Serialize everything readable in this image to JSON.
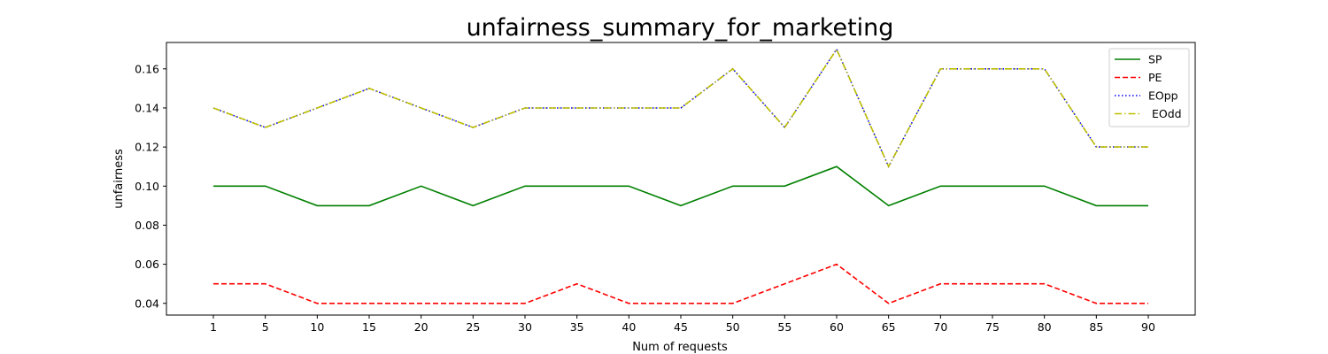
{
  "chart_data": {
    "type": "line",
    "title": "unfairness_summary_for_marketing",
    "xlabel": "Num of requests",
    "ylabel": "unfairness",
    "categories": [
      "1",
      "5",
      "10",
      "15",
      "20",
      "25",
      "30",
      "35",
      "40",
      "45",
      "50",
      "55",
      "60",
      "65",
      "70",
      "75",
      "80",
      "85",
      "90"
    ],
    "yticks": [
      "0.04",
      "0.06",
      "0.08",
      "0.10",
      "0.12",
      "0.14",
      "0.16"
    ],
    "ylim": [
      0.034,
      0.1735
    ],
    "grid": false,
    "legend_position": "top-right",
    "series": [
      {
        "name": "SP",
        "color": "#008000",
        "style": "solid",
        "values": [
          0.1,
          0.1,
          0.09,
          0.09,
          0.1,
          0.09,
          0.1,
          0.1,
          0.1,
          0.09,
          0.1,
          0.1,
          0.11,
          0.09,
          0.1,
          0.1,
          0.1,
          0.09,
          0.09
        ]
      },
      {
        "name": "PE",
        "color": "#ff0000",
        "style": "dashed",
        "values": [
          0.05,
          0.05,
          0.04,
          0.04,
          0.04,
          0.04,
          0.04,
          0.05,
          0.04,
          0.04,
          0.04,
          0.05,
          0.06,
          0.04,
          0.05,
          0.05,
          0.05,
          0.04,
          0.04
        ]
      },
      {
        "name": "EOpp",
        "color": "#0000ff",
        "style": "dotted",
        "values": [
          0.14,
          0.13,
          0.14,
          0.15,
          0.14,
          0.13,
          0.14,
          0.14,
          0.14,
          0.14,
          0.16,
          0.13,
          0.17,
          0.11,
          0.16,
          0.16,
          0.16,
          0.12,
          0.12
        ]
      },
      {
        "name": " EOdd",
        "color": "#bfbf00",
        "style": "dashdot",
        "values": [
          0.14,
          0.13,
          0.14,
          0.15,
          0.14,
          0.13,
          0.14,
          0.14,
          0.14,
          0.14,
          0.16,
          0.13,
          0.17,
          0.11,
          0.16,
          0.16,
          0.16,
          0.12,
          0.12
        ]
      }
    ]
  }
}
